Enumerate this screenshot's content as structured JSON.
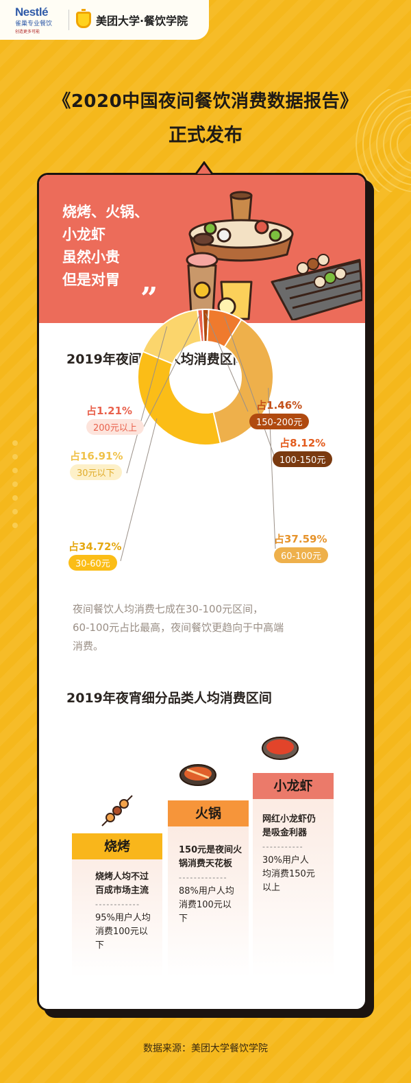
{
  "header": {
    "nestle_name": "Nestlé",
    "nestle_cn": "雀巢专业餐饮",
    "nestle_slogan": "创造更多可能",
    "partner_name": "美团大学·餐饮学院"
  },
  "title": {
    "line1": "《2020中国夜间餐饮消费数据报告》",
    "line2": "正式发布"
  },
  "hero": {
    "lines": [
      "烧烤、火锅、",
      "小龙虾",
      "虽然小贵",
      "但是对胃"
    ],
    "quote": "”"
  },
  "section1": {
    "title": "2019年夜间餐饮人均消费区间"
  },
  "chart_data": {
    "type": "pie",
    "donut": true,
    "title": "2019年夜间餐饮人均消费区间",
    "slices": [
      {
        "label": "200元以上",
        "value": 1.21,
        "pct_text": "占1.21%",
        "color": "#e9614c",
        "text_color": "#e9614c"
      },
      {
        "label": "150-200元",
        "value": 1.46,
        "pct_text": "占1.46%",
        "color": "#b04a10",
        "text_color": "#c4511a"
      },
      {
        "label": "100-150元",
        "value": 8.12,
        "pct_text": "占8.12%",
        "color": "#ef7a2d",
        "text_color": "#e35b1d"
      },
      {
        "label": "60-100元",
        "value": 37.59,
        "pct_text": "占37.59%",
        "color": "#eeb04b",
        "text_color": "#e6932b"
      },
      {
        "label": "30-60元",
        "value": 34.72,
        "pct_text": "占34.72%",
        "color": "#fbbd17",
        "text_color": "#e5a812"
      },
      {
        "label": "30元以下",
        "value": 16.91,
        "pct_text": "占16.91%",
        "color": "#fbd56c",
        "text_color": "#f0c24a"
      }
    ]
  },
  "section1_desc": [
    "夜间餐饮人均消费七成在30-100元区间，",
    "60-100元占比最高，夜间餐饮更趋向于中高端",
    "消费。"
  ],
  "section2": {
    "title": "2019年夜宵细分品类人均消费区间"
  },
  "categories": [
    {
      "name": "烧烤",
      "headline": [
        "烧烤人均不过",
        "百成市场主流"
      ],
      "dashes": "- - - - - - - - - - - -",
      "stat": [
        "95%用户人均",
        "消费100元以",
        "下"
      ],
      "head_color": "#f9b61b"
    },
    {
      "name": "火锅",
      "headline": [
        "150元是夜间火",
        "锅消费天花板"
      ],
      "dashes": "- - - - - - - - - - - - -",
      "stat": [
        "88%用户人均",
        "消费100元以",
        "下"
      ],
      "head_color": "#f6953a"
    },
    {
      "name": "小龙虾",
      "headline": [
        "网红小龙虾仍",
        "是吸金利器"
      ],
      "dashes": "- - - - - - - - - - -",
      "stat": [
        "30%用户人",
        "均消费150元",
        "以上"
      ],
      "head_color": "#eb7a6a"
    }
  ],
  "source": "数据来源：美团大学餐饮学院",
  "colors": {
    "background": "#f5b81c",
    "hero": "#ec6c5a",
    "ink": "#1b1410"
  }
}
